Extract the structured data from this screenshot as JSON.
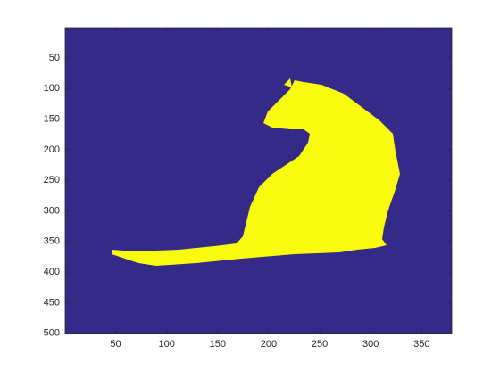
{
  "chart_data": {
    "type": "image",
    "xlim": [
      0.5,
      379.5
    ],
    "ylim": [
      0.5,
      500.5
    ],
    "y_reversed": true,
    "xticks": [
      50,
      100,
      150,
      200,
      250,
      300,
      350
    ],
    "yticks": [
      50,
      100,
      150,
      200,
      250,
      300,
      350,
      400,
      450,
      500
    ],
    "background_color": "#352a87",
    "mask_color": "#f9fb0e"
  }
}
